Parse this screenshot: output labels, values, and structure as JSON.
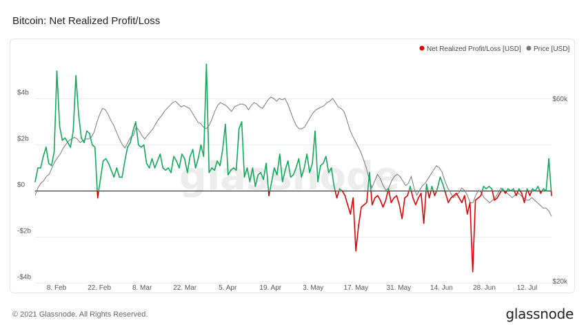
{
  "title": "Bitcoin: Net Realized Profit/Loss",
  "footer": "© 2021 Glassnode. All Rights Reserved.",
  "brand": "glassnode",
  "watermark": "glassnode",
  "chart_data": {
    "type": "line",
    "title": "Bitcoin: Net Realized Profit/Loss",
    "x_start": "2021-02-01",
    "x_end": "2021-07-20",
    "x_tick_labels": [
      "8. Feb",
      "22. Feb",
      "8. Mar",
      "22. Mar",
      "5. Apr",
      "19. Apr",
      "3. May",
      "17. May",
      "31. May",
      "14. Jun",
      "28. Jun",
      "12. Jul"
    ],
    "x_tick_dates": [
      "2021-02-08",
      "2021-02-22",
      "2021-03-08",
      "2021-03-22",
      "2021-04-05",
      "2021-04-19",
      "2021-05-03",
      "2021-05-17",
      "2021-05-31",
      "2021-06-14",
      "2021-06-28",
      "2021-07-12"
    ],
    "y_left": {
      "ticks": [
        4,
        2,
        0,
        -2,
        -4
      ],
      "tick_labels": [
        "$4b",
        "$2b",
        "$0",
        "-$2b",
        "-$4b"
      ],
      "range": [
        -4,
        4.2
      ],
      "unit": "billion USD"
    },
    "y_right": {
      "ticks": [
        60000,
        20000
      ],
      "tick_labels": [
        "$60k",
        "$20k"
      ],
      "scale": "log",
      "range": [
        20000,
        60000
      ]
    },
    "grid": "horizontal",
    "legend": {
      "placement": "top-right"
    },
    "series": [
      {
        "name": "Net Realized Profit/Loss [USD]",
        "color_positive": "#0fa958",
        "color_negative": "#e00000",
        "axis": "left",
        "values": [
          0.4,
          1.0,
          1.0,
          1.5,
          1.9,
          1.2,
          1.1,
          1.7,
          5.2,
          2.8,
          2.2,
          2.3,
          2.1,
          1.9,
          2.6,
          5.0,
          3.3,
          2.3,
          2.1,
          2.6,
          2.5,
          2.0,
          1.9,
          -0.3,
          0.5,
          1.3,
          1.4,
          1.2,
          0.9,
          0.6,
          1.0,
          0.6,
          0.6,
          1.3,
          1.9,
          2.1,
          2.6,
          3.0,
          2.0,
          1.9,
          2.0,
          1.2,
          1.0,
          1.4,
          1.0,
          1.3,
          1.6,
          1.0,
          0.9,
          1.0,
          0.8,
          1.5,
          1.3,
          1.0,
          1.6,
          1.4,
          0.8,
          1.5,
          1.8,
          1.0,
          1.4,
          2.0,
          1.5,
          5.5,
          0.8,
          1.0,
          0.9,
          1.3,
          1.1,
          1.8,
          2.9,
          0.7,
          0.9,
          1.0,
          0.9,
          2.7,
          3.0,
          0.6,
          1.0,
          0.4,
          1.0,
          0.2,
          0.7,
          0.8,
          0.5,
          1.2,
          -0.2,
          0.4,
          1.0,
          0.7,
          1.6,
          0.4,
          0.9,
          1.3,
          0.6,
          0.7,
          1.0,
          1.4,
          0.6,
          1.0,
          1.6,
          0.8,
          1.2,
          2.6,
          0.4,
          1.1,
          1.2,
          1.5,
          0.8,
          1.0,
          0.2,
          -0.3,
          0.1,
          0.0,
          -0.2,
          -0.6,
          -1.0,
          -0.3,
          -2.6,
          -1.5,
          -0.7,
          -0.6,
          -0.5,
          0.8,
          -0.6,
          -0.3,
          -0.2,
          -0.4,
          -0.7,
          -0.4,
          0.1,
          -0.5,
          -0.3,
          -0.2,
          -0.6,
          -1.2,
          -0.3,
          -0.2,
          0.2,
          -0.3,
          -0.6,
          -0.3,
          -0.1,
          -1.4,
          0.3,
          -0.3,
          0.2,
          -0.2,
          0.1,
          0.6,
          0.3,
          -0.1,
          -0.5,
          -0.3,
          -0.2,
          -0.1,
          -0.3,
          -0.5,
          -0.2,
          -1.0,
          -0.5,
          -3.5,
          -0.4,
          -0.3,
          -0.2,
          0.2,
          0.1,
          0.2,
          0.1,
          -0.4,
          -0.3,
          -0.1,
          0.1,
          -0.1,
          0.1,
          0.0,
          0.1,
          -0.2,
          0.1,
          -0.1,
          -0.5,
          0.1,
          -0.2,
          0.1,
          0.0,
          0.2,
          -0.1,
          0.1,
          0.0,
          1.4,
          -0.2
        ]
      },
      {
        "name": "Price [USD]",
        "color": "#777777",
        "axis": "right",
        "values": [
          33500,
          35000,
          36000,
          36500,
          37500,
          38000,
          39500,
          41000,
          42000,
          43000,
          44500,
          45500,
          46500,
          47000,
          47500,
          47000,
          46000,
          46500,
          47000,
          47000,
          47500,
          49000,
          52000,
          54500,
          56500,
          56000,
          54500,
          52500,
          51000,
          49000,
          47000,
          45500,
          44500,
          46000,
          47500,
          48000,
          50500,
          49500,
          48000,
          47000,
          48000,
          49000,
          50000,
          51500,
          53000,
          54000,
          55500,
          56500,
          57500,
          58500,
          59000,
          58000,
          57000,
          57500,
          57000,
          56500,
          55000,
          53500,
          52000,
          51500,
          50500,
          50000,
          51000,
          53000,
          55500,
          57500,
          58500,
          58000,
          57500,
          56500,
          55500,
          57000,
          57500,
          58000,
          58000,
          57500,
          56000,
          57500,
          58500,
          58000,
          57000,
          56500,
          58000,
          59500,
          60500,
          60000,
          59000,
          60000,
          59500,
          60000,
          58000,
          55500,
          53000,
          51000,
          50000,
          50000,
          50500,
          52000,
          53500,
          55000,
          56000,
          56500,
          57000,
          57500,
          58500,
          59000,
          60000,
          58500,
          57000,
          56500,
          55500,
          53000,
          50000,
          48000,
          46500,
          45000,
          43500,
          41500,
          39500,
          37000,
          35000,
          36500,
          38000,
          37000,
          35500,
          34500,
          35000,
          36500,
          37500,
          38000,
          37500,
          36500,
          35500,
          36000,
          37500,
          35000,
          33500,
          34500,
          35500,
          36000,
          37000,
          38000,
          39000,
          40000,
          39500,
          38500,
          36500,
          35000,
          34000,
          33000,
          33500,
          34000,
          35000,
          34500,
          33500,
          32000,
          32000,
          33500,
          34500,
          34000,
          33000,
          32500,
          32000,
          32500,
          33000,
          34000,
          35000,
          34500,
          34000,
          33500,
          33000,
          33500,
          34000,
          33500,
          33000,
          32500,
          32500,
          33000,
          32500,
          32000,
          31500,
          31000,
          31000,
          30500,
          29500
        ]
      }
    ]
  }
}
